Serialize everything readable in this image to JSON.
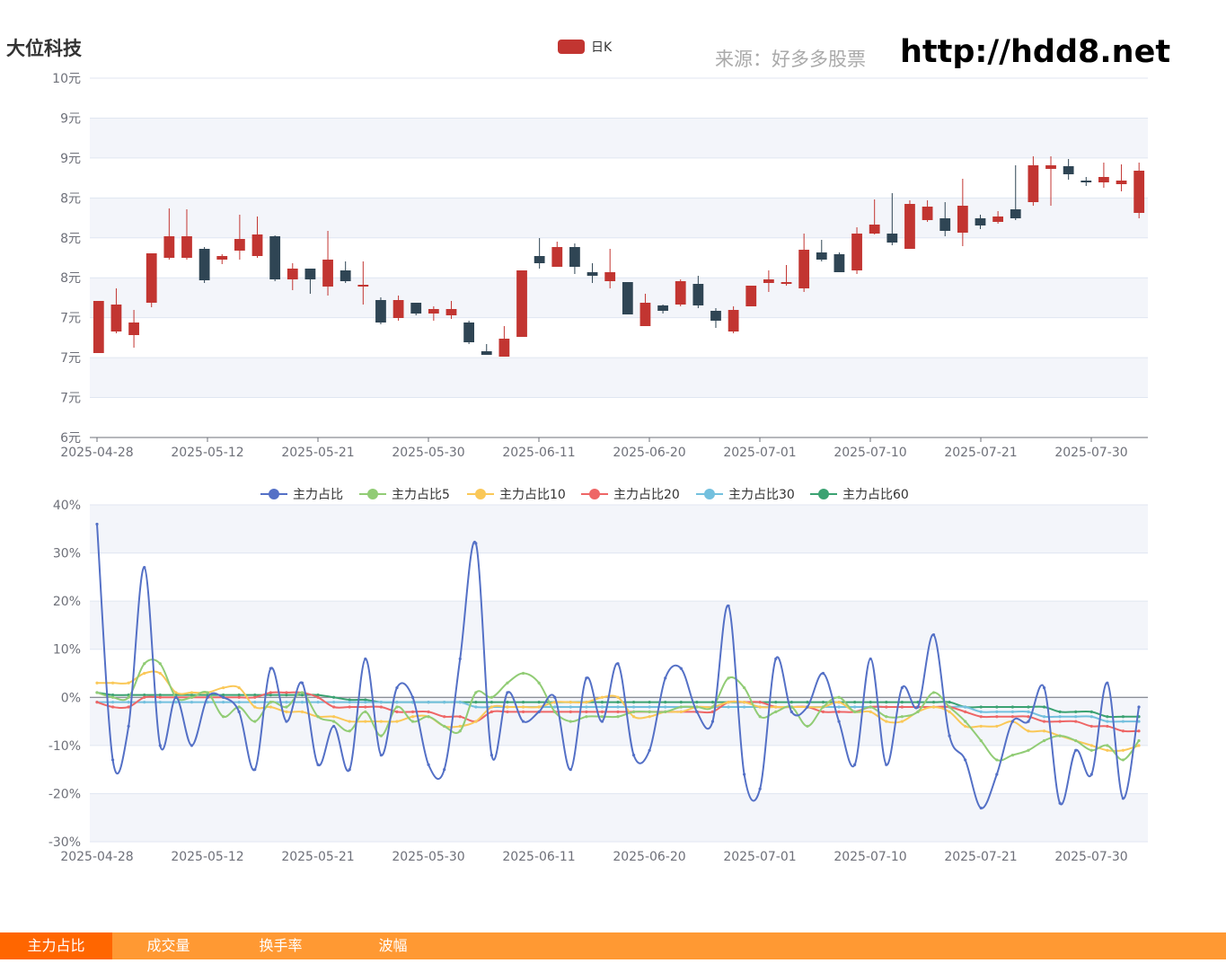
{
  "header": {
    "stock_name": "大位科技",
    "source_label": "来源：好多多股票",
    "site_url": "http://hdd8.net"
  },
  "tabs": [
    {
      "label": "主力占比",
      "active": true
    },
    {
      "label": "成交量",
      "active": false
    },
    {
      "label": "换手率",
      "active": false
    },
    {
      "label": "波幅",
      "active": false
    }
  ],
  "colors": {
    "up": "#c23531",
    "down": "#2f4554",
    "tab_bar": "#ff9933",
    "tab_active": "#ff6600"
  },
  "chart_data": [
    {
      "type": "candlestick",
      "legend": [
        "日K"
      ],
      "y_tick_labels": [
        "6元",
        "7元",
        "7元",
        "7元",
        "8元",
        "8元",
        "8元",
        "9元",
        "9元",
        "10元"
      ],
      "x_tick_labels": [
        "2025-04-28",
        "2025-05-12",
        "2025-05-21",
        "2025-05-30",
        "2025-06-11",
        "2025-06-20",
        "2025-07-01",
        "2025-07-10",
        "2025-07-21",
        "2025-07-30"
      ],
      "ylim": [
        6.0,
        10.0
      ],
      "candles": [
        {
          "o": 6.94,
          "c": 7.52,
          "l": 6.94,
          "h": 7.52
        },
        {
          "o": 7.18,
          "c": 7.48,
          "l": 7.16,
          "h": 7.66
        },
        {
          "o": 7.14,
          "c": 7.28,
          "l": 7.0,
          "h": 7.42
        },
        {
          "o": 7.5,
          "c": 8.05,
          "l": 7.45,
          "h": 8.05
        },
        {
          "o": 8.0,
          "c": 8.24,
          "l": 7.98,
          "h": 8.55
        },
        {
          "o": 8.0,
          "c": 8.24,
          "l": 7.98,
          "h": 8.54
        },
        {
          "o": 8.1,
          "c": 7.75,
          "l": 7.72,
          "h": 8.12
        },
        {
          "o": 7.98,
          "c": 8.02,
          "l": 7.93,
          "h": 8.04
        },
        {
          "o": 8.08,
          "c": 8.21,
          "l": 7.98,
          "h": 8.48
        },
        {
          "o": 8.02,
          "c": 8.26,
          "l": 8.0,
          "h": 8.46
        },
        {
          "o": 8.24,
          "c": 7.76,
          "l": 7.74,
          "h": 8.25
        },
        {
          "o": 7.76,
          "c": 7.88,
          "l": 7.64,
          "h": 7.94
        },
        {
          "o": 7.88,
          "c": 7.76,
          "l": 7.6,
          "h": 7.88
        },
        {
          "o": 7.68,
          "c": 7.98,
          "l": 7.58,
          "h": 8.3
        },
        {
          "o": 7.86,
          "c": 7.74,
          "l": 7.72,
          "h": 7.96
        },
        {
          "o": 7.68,
          "c": 7.7,
          "l": 7.48,
          "h": 7.96
        },
        {
          "o": 7.53,
          "c": 7.28,
          "l": 7.26,
          "h": 7.56
        },
        {
          "o": 7.33,
          "c": 7.53,
          "l": 7.3,
          "h": 7.58
        },
        {
          "o": 7.5,
          "c": 7.38,
          "l": 7.36,
          "h": 7.5
        },
        {
          "o": 7.38,
          "c": 7.43,
          "l": 7.3,
          "h": 7.46
        },
        {
          "o": 7.36,
          "c": 7.43,
          "l": 7.32,
          "h": 7.52
        },
        {
          "o": 7.28,
          "c": 7.06,
          "l": 7.04,
          "h": 7.3
        },
        {
          "o": 6.96,
          "c": 6.92,
          "l": 6.92,
          "h": 7.04
        },
        {
          "o": 6.9,
          "c": 7.1,
          "l": 6.9,
          "h": 7.24
        },
        {
          "o": 7.12,
          "c": 7.86,
          "l": 7.12,
          "h": 7.86
        },
        {
          "o": 8.02,
          "c": 7.94,
          "l": 7.88,
          "h": 8.22
        },
        {
          "o": 7.9,
          "c": 8.12,
          "l": 7.9,
          "h": 8.18
        },
        {
          "o": 8.12,
          "c": 7.9,
          "l": 7.82,
          "h": 8.16
        },
        {
          "o": 7.84,
          "c": 7.8,
          "l": 7.72,
          "h": 7.94
        },
        {
          "o": 7.74,
          "c": 7.84,
          "l": 7.66,
          "h": 8.1
        },
        {
          "o": 7.73,
          "c": 7.37,
          "l": 7.37,
          "h": 7.73
        },
        {
          "o": 7.24,
          "c": 7.5,
          "l": 7.24,
          "h": 7.6
        },
        {
          "o": 7.47,
          "c": 7.41,
          "l": 7.38,
          "h": 7.48
        },
        {
          "o": 7.48,
          "c": 7.74,
          "l": 7.46,
          "h": 7.76
        },
        {
          "o": 7.71,
          "c": 7.47,
          "l": 7.44,
          "h": 7.8
        },
        {
          "o": 7.41,
          "c": 7.3,
          "l": 7.22,
          "h": 7.44
        },
        {
          "o": 7.18,
          "c": 7.42,
          "l": 7.16,
          "h": 7.46
        },
        {
          "o": 7.46,
          "c": 7.69,
          "l": 7.46,
          "h": 7.69
        },
        {
          "o": 7.72,
          "c": 7.76,
          "l": 7.62,
          "h": 7.86
        },
        {
          "o": 7.71,
          "c": 7.73,
          "l": 7.69,
          "h": 7.92
        },
        {
          "o": 7.66,
          "c": 8.09,
          "l": 7.62,
          "h": 8.27
        },
        {
          "o": 8.06,
          "c": 7.98,
          "l": 7.96,
          "h": 8.2
        },
        {
          "o": 8.04,
          "c": 7.84,
          "l": 7.84,
          "h": 8.06
        },
        {
          "o": 7.86,
          "c": 8.27,
          "l": 7.82,
          "h": 8.34
        },
        {
          "o": 8.27,
          "c": 8.37,
          "l": 8.26,
          "h": 8.65
        },
        {
          "o": 8.27,
          "c": 8.17,
          "l": 8.14,
          "h": 8.72
        },
        {
          "o": 8.1,
          "c": 8.6,
          "l": 8.1,
          "h": 8.64
        },
        {
          "o": 8.42,
          "c": 8.57,
          "l": 8.4,
          "h": 8.64
        },
        {
          "o": 8.44,
          "c": 8.3,
          "l": 8.24,
          "h": 8.62
        },
        {
          "o": 8.28,
          "c": 8.58,
          "l": 8.13,
          "h": 8.88
        },
        {
          "o": 8.44,
          "c": 8.36,
          "l": 8.32,
          "h": 8.48
        },
        {
          "o": 8.4,
          "c": 8.46,
          "l": 8.38,
          "h": 8.52
        },
        {
          "o": 8.54,
          "c": 8.44,
          "l": 8.42,
          "h": 9.03
        },
        {
          "o": 8.62,
          "c": 9.03,
          "l": 8.58,
          "h": 9.13
        },
        {
          "o": 8.99,
          "c": 9.03,
          "l": 8.58,
          "h": 9.13
        },
        {
          "o": 9.02,
          "c": 8.93,
          "l": 8.87,
          "h": 9.1
        },
        {
          "o": 8.86,
          "c": 8.84,
          "l": 8.8,
          "h": 8.9
        },
        {
          "o": 8.84,
          "c": 8.9,
          "l": 8.78,
          "h": 9.06
        },
        {
          "o": 8.82,
          "c": 8.86,
          "l": 8.74,
          "h": 9.04
        },
        {
          "o": 8.5,
          "c": 8.97,
          "l": 8.44,
          "h": 9.06
        }
      ]
    },
    {
      "type": "line",
      "legend": [
        "主力占比",
        "主力占比5",
        "主力占比10",
        "主力占比20",
        "主力占比30",
        "主力占比60"
      ],
      "y_tick_labels": [
        "-30%",
        "-20%",
        "-10%",
        "0%",
        "10%",
        "20%",
        "30%",
        "40%"
      ],
      "x_tick_labels": [
        "2025-04-28",
        "2025-05-12",
        "2025-05-21",
        "2025-05-30",
        "2025-06-11",
        "2025-06-20",
        "2025-07-01",
        "2025-07-10",
        "2025-07-21",
        "2025-07-30"
      ],
      "ylim": [
        -30,
        40
      ],
      "series": [
        {
          "name": "主力占比",
          "color": "#5470c6",
          "values": [
            36.0,
            -13.0,
            -6.0,
            27.0,
            -10.0,
            0.0,
            -10.0,
            0.0,
            0.0,
            -3.0,
            -15.0,
            6.0,
            -5.0,
            3.0,
            -14.0,
            -6.0,
            -15.0,
            8.0,
            -12.0,
            2.0,
            0.0,
            -14.0,
            -15.0,
            8.0,
            32.0,
            -12.0,
            1.0,
            -5.0,
            -3.0,
            0.0,
            -15.0,
            4.0,
            -5.0,
            7.0,
            -12.0,
            -11.0,
            4.0,
            6.0,
            -3.0,
            -5.0,
            19.0,
            -16.0,
            -19.0,
            8.0,
            -3.0,
            -2.0,
            5.0,
            -5.0,
            -14.0,
            8.0,
            -14.0,
            2.0,
            -2.0,
            13.0,
            -8.0,
            -13.0,
            -23.0,
            -16.0,
            -5.0,
            -5.0,
            2.0,
            -22.0,
            -11.0,
            -16.0,
            3.0,
            -21.0,
            -2.0
          ]
        },
        {
          "name": "主力占比5",
          "color": "#91cc75",
          "values": [
            1.0,
            0.0,
            0.0,
            7.0,
            7.0,
            0.0,
            0.0,
            1.0,
            -4.0,
            -2.0,
            -5.0,
            -1.0,
            -2.0,
            1.0,
            -4.0,
            -5.0,
            -7.0,
            -3.0,
            -8.0,
            -2.0,
            -5.0,
            -4.0,
            -6.0,
            -7.0,
            1.0,
            0.0,
            3.0,
            5.0,
            3.0,
            -3.0,
            -5.0,
            -4.0,
            -4.0,
            -4.0,
            -3.0,
            -3.0,
            -3.0,
            -2.0,
            -2.0,
            -2.0,
            4.0,
            2.0,
            -4.0,
            -3.0,
            -2.0,
            -6.0,
            -2.0,
            0.0,
            -3.0,
            -2.0,
            -4.0,
            -4.0,
            -3.0,
            1.0,
            -2.0,
            -5.0,
            -9.0,
            -13.0,
            -12.0,
            -11.0,
            -9.0,
            -8.0,
            -9.0,
            -11.0,
            -10.0,
            -13.0,
            -9.0
          ]
        },
        {
          "name": "主力占比10",
          "color": "#fac858",
          "values": [
            3.0,
            3.0,
            3.0,
            5.0,
            5.0,
            1.0,
            1.0,
            1.0,
            2.0,
            2.0,
            -2.0,
            -2.0,
            -3.0,
            -3.0,
            -4.0,
            -4.0,
            -5.0,
            -5.0,
            -5.0,
            -5.0,
            -4.0,
            -4.0,
            -6.0,
            -6.0,
            -5.0,
            -2.0,
            -2.0,
            -2.0,
            -2.0,
            -1.0,
            -1.0,
            -1.0,
            0.0,
            0.0,
            -4.0,
            -4.0,
            -3.0,
            -3.0,
            -2.0,
            -2.0,
            -1.0,
            -1.0,
            -2.0,
            -2.0,
            -2.0,
            -2.0,
            -2.0,
            -1.0,
            -3.0,
            -3.0,
            -5.0,
            -5.0,
            -3.0,
            -2.0,
            -3.0,
            -6.0,
            -6.0,
            -6.0,
            -5.0,
            -7.0,
            -7.0,
            -8.0,
            -9.0,
            -10.0,
            -11.0,
            -11.0,
            -10.0
          ]
        },
        {
          "name": "主力占比20",
          "color": "#ee6666",
          "values": [
            -1.0,
            -2.0,
            -2.0,
            0.0,
            0.0,
            0.0,
            0.0,
            0.0,
            0.0,
            0.0,
            0.0,
            1.0,
            1.0,
            1.0,
            0.0,
            -2.0,
            -2.0,
            -2.0,
            -2.0,
            -3.0,
            -3.0,
            -3.0,
            -4.0,
            -4.0,
            -5.0,
            -3.0,
            -3.0,
            -3.0,
            -3.0,
            -3.0,
            -3.0,
            -3.0,
            -3.0,
            -3.0,
            -3.0,
            -3.0,
            -3.0,
            -3.0,
            -3.0,
            -3.0,
            -1.0,
            -1.0,
            -1.0,
            -2.0,
            -2.0,
            -2.0,
            -3.0,
            -3.0,
            -3.0,
            -2.0,
            -2.0,
            -2.0,
            -2.0,
            -2.0,
            -2.0,
            -3.0,
            -4.0,
            -4.0,
            -4.0,
            -4.0,
            -5.0,
            -5.0,
            -5.0,
            -6.0,
            -6.0,
            -7.0,
            -7.0
          ]
        },
        {
          "name": "主力占比30",
          "color": "#73c0de",
          "values": [
            -1.0,
            -1.0,
            -1.0,
            -1.0,
            -1.0,
            -1.0,
            -1.0,
            -1.0,
            -1.0,
            -1.0,
            -1.0,
            -1.0,
            -1.0,
            -1.0,
            -1.0,
            -1.0,
            -1.0,
            -1.0,
            -1.0,
            -1.0,
            -1.0,
            -1.0,
            -1.0,
            -1.0,
            -2.0,
            -2.0,
            -2.0,
            -2.0,
            -2.0,
            -2.0,
            -2.0,
            -2.0,
            -2.0,
            -2.0,
            -2.0,
            -2.0,
            -2.0,
            -2.0,
            -2.0,
            -2.0,
            -2.0,
            -2.0,
            -2.0,
            -2.0,
            -2.0,
            -2.0,
            -2.0,
            -2.0,
            -2.0,
            -2.0,
            -2.0,
            -2.0,
            -2.0,
            -2.0,
            -2.0,
            -2.0,
            -3.0,
            -3.0,
            -3.0,
            -3.0,
            -4.0,
            -4.0,
            -4.0,
            -4.0,
            -5.0,
            -5.0,
            -5.0
          ]
        },
        {
          "name": "主力占比60",
          "color": "#3ba272",
          "values": [
            1.0,
            0.5,
            0.5,
            0.5,
            0.5,
            0.5,
            0.5,
            0.5,
            0.5,
            0.5,
            0.5,
            0.5,
            0.5,
            0.5,
            0.5,
            0.0,
            -0.5,
            -0.5,
            -1.0,
            -1.0,
            -1.0,
            -1.0,
            -1.0,
            -1.0,
            -1.0,
            -1.0,
            -1.0,
            -1.0,
            -1.0,
            -1.0,
            -1.0,
            -1.0,
            -1.0,
            -1.0,
            -1.0,
            -1.0,
            -1.0,
            -1.0,
            -1.0,
            -1.0,
            -1.0,
            -1.0,
            -1.0,
            -1.0,
            -1.0,
            -1.0,
            -1.0,
            -1.0,
            -1.0,
            -1.0,
            -1.0,
            -1.0,
            -1.0,
            -1.0,
            -1.0,
            -2.0,
            -2.0,
            -2.0,
            -2.0,
            -2.0,
            -2.0,
            -3.0,
            -3.0,
            -3.0,
            -4.0,
            -4.0,
            -4.0
          ]
        }
      ]
    }
  ]
}
